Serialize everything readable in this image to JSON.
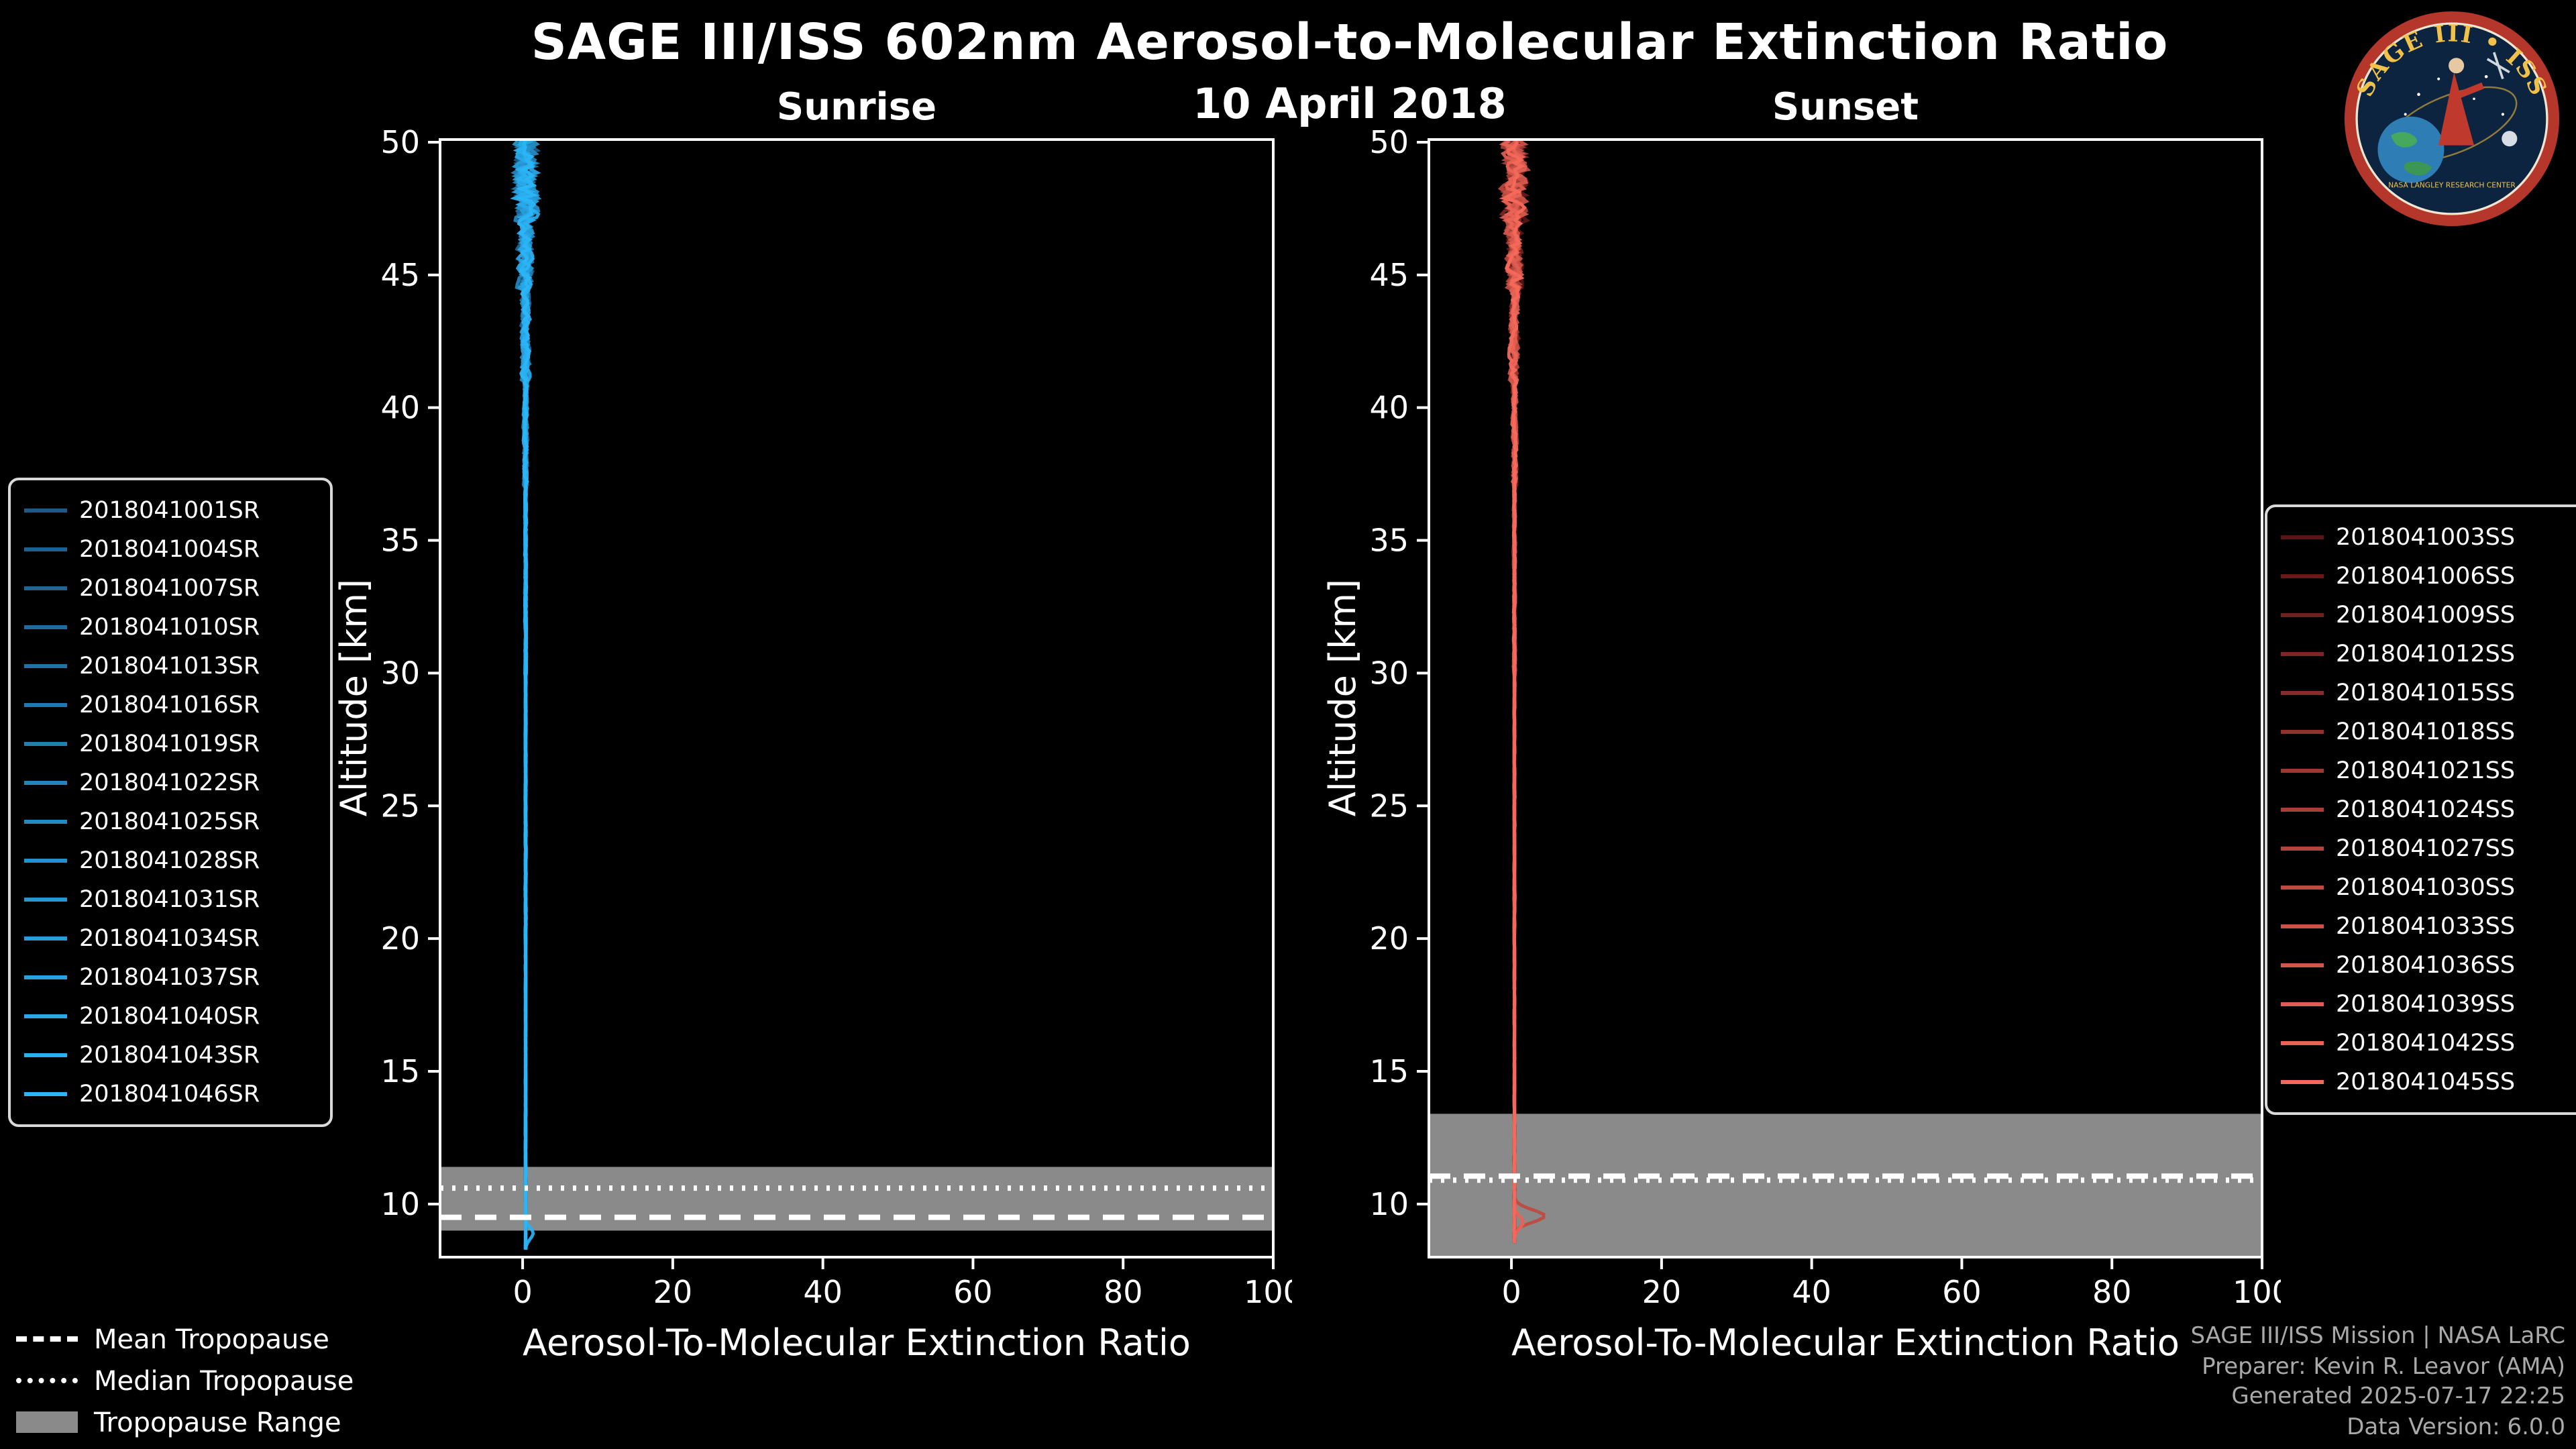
{
  "page": {
    "title": "SAGE III/ISS 602nm Aerosol-to-Molecular Extinction Ratio",
    "date": "10 April 2018"
  },
  "logo": {
    "title": "SAGE III • ISS",
    "ring_text": "NASA LANGLEY RESEARCH CENTER"
  },
  "tropo_legend": {
    "items": [
      {
        "style": "dashed",
        "label": "Mean Tropopause"
      },
      {
        "style": "dotted",
        "label": "Median Tropopause"
      },
      {
        "style": "band",
        "label": "Tropopause Range"
      }
    ]
  },
  "footer": {
    "lines": [
      "SAGE III/ISS Mission | NASA LaRC",
      "Preparer: Kevin R. Leavor (AMA)",
      "Generated 2025-07-17 22:25",
      "Data Version: 6.0.0"
    ]
  },
  "chart_data": [
    {
      "type": "line",
      "title": "Sunrise",
      "xlabel": "Aerosol-To-Molecular Extinction Ratio",
      "ylabel": "Altitude [km]",
      "xlim": [
        -11,
        100
      ],
      "ylim": [
        8,
        50.1
      ],
      "xticks": [
        0,
        20,
        40,
        60,
        80,
        100
      ],
      "yticks": [
        10,
        15,
        20,
        25,
        30,
        35,
        40,
        45,
        50
      ],
      "grid": false,
      "legend_position": "outside-left",
      "band_color": "#8a8a8a",
      "tropopause": {
        "mean": 9.5,
        "median": 10.6,
        "range": [
          9.0,
          11.4
        ]
      },
      "profile": {
        "base": 0.4,
        "alt_top": 50.05,
        "alt_bottom": 8.25,
        "step": 0.12,
        "noise_levels": [
          [
            47,
            2.3
          ],
          [
            44.5,
            1.4
          ],
          [
            41,
            0.85
          ],
          [
            37,
            0.4
          ],
          [
            30,
            0.18
          ],
          [
            20,
            0.1
          ],
          [
            0,
            0.07
          ]
        ]
      },
      "bumps": [
        {
          "series": 14,
          "alt": 8.9,
          "sigma": 0.3,
          "amp": 1.0
        }
      ],
      "series": [
        {
          "name": "2018041001SR",
          "color": "#1d5a86"
        },
        {
          "name": "2018041004SR",
          "color": "#1e608e"
        },
        {
          "name": "2018041007SR",
          "color": "#1f6696"
        },
        {
          "name": "2018041010SR",
          "color": "#206c9d"
        },
        {
          "name": "2018041013SR",
          "color": "#2172a4"
        },
        {
          "name": "2018041016SR",
          "color": "#2278ac"
        },
        {
          "name": "2018041019SR",
          "color": "#237eb3"
        },
        {
          "name": "2018041022SR",
          "color": "#2484bb"
        },
        {
          "name": "2018041025SR",
          "color": "#248bc2"
        },
        {
          "name": "2018041028SR",
          "color": "#2591ca"
        },
        {
          "name": "2018041031SR",
          "color": "#2697d1"
        },
        {
          "name": "2018041034SR",
          "color": "#279dd9"
        },
        {
          "name": "2018041037SR",
          "color": "#28a3e0"
        },
        {
          "name": "2018041040SR",
          "color": "#29a9e8"
        },
        {
          "name": "2018041043SR",
          "color": "#2aafef"
        },
        {
          "name": "2018041046SR",
          "color": "#2bb5f7"
        }
      ]
    },
    {
      "type": "line",
      "title": "Sunset",
      "xlabel": "Aerosol-To-Molecular Extinction Ratio",
      "ylabel": "Altitude [km]",
      "xlim": [
        -11,
        100
      ],
      "ylim": [
        8,
        50.1
      ],
      "xticks": [
        0,
        20,
        40,
        60,
        80,
        100
      ],
      "yticks": [
        10,
        15,
        20,
        25,
        30,
        35,
        40,
        45,
        50
      ],
      "grid": false,
      "legend_position": "outside-right",
      "band_color": "#8a8a8a",
      "tropopause": {
        "mean": 11.05,
        "median": 10.9,
        "range": [
          8.0,
          13.4
        ]
      },
      "profile": {
        "base": 0.4,
        "alt_top": 50.05,
        "alt_bottom": 8.45,
        "step": 0.12,
        "noise_levels": [
          [
            47,
            2.4
          ],
          [
            44.5,
            1.5
          ],
          [
            41,
            0.9
          ],
          [
            37,
            0.45
          ],
          [
            30,
            0.2
          ],
          [
            20,
            0.1
          ],
          [
            0,
            0.07
          ]
        ]
      },
      "bumps": [
        {
          "series": 9,
          "alt": 9.55,
          "sigma": 0.33,
          "amp": 4.0
        },
        {
          "series": 13,
          "alt": 9.3,
          "sigma": 0.3,
          "amp": 1.2
        }
      ],
      "series": [
        {
          "name": "2018041003SS",
          "color": "#5c1414"
        },
        {
          "name": "2018041006SS",
          "color": "#671a19"
        },
        {
          "name": "2018041009SS",
          "color": "#72201e"
        },
        {
          "name": "2018041012SS",
          "color": "#7d2623"
        },
        {
          "name": "2018041015SS",
          "color": "#872c28"
        },
        {
          "name": "2018041018SS",
          "color": "#92322d"
        },
        {
          "name": "2018041021SS",
          "color": "#9d3832"
        },
        {
          "name": "2018041024SS",
          "color": "#a83f37"
        },
        {
          "name": "2018041027SS",
          "color": "#b3453c"
        },
        {
          "name": "2018041030SS",
          "color": "#be4b41"
        },
        {
          "name": "2018041033SS",
          "color": "#c95146"
        },
        {
          "name": "2018041036SS",
          "color": "#d3574b"
        },
        {
          "name": "2018041039SS",
          "color": "#de5d50"
        },
        {
          "name": "2018041042SS",
          "color": "#e96355"
        },
        {
          "name": "2018041045SS",
          "color": "#f4695a"
        }
      ]
    }
  ]
}
